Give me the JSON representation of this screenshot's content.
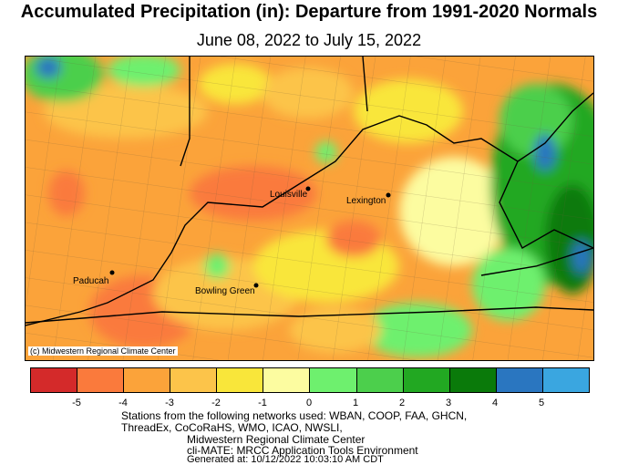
{
  "title": "Accumulated Precipitation (in): Departure from 1991-2020 Normals",
  "date_range": "June 08, 2022 to July 15, 2022",
  "copyright": "(c) Midwestern Regional Climate Center",
  "cities": [
    {
      "name": "Louisville"
    },
    {
      "name": "Lexington"
    },
    {
      "name": "Paducah"
    },
    {
      "name": "Bowling Green"
    }
  ],
  "legend": {
    "colors": [
      "#d42a2a",
      "#fa7a3c",
      "#fba33a",
      "#fcc44a",
      "#f9e63a",
      "#fcfca0",
      "#6ef06e",
      "#4ccf4c",
      "#22a822",
      "#0a7a0a",
      "#2a76c0",
      "#3aa6e0"
    ],
    "tick_labels": [
      "-5",
      "-4",
      "-3",
      "-2",
      "-1",
      "0",
      "1",
      "2",
      "3",
      "4",
      "5"
    ]
  },
  "footer": {
    "line1": "Stations from the following networks used: WBAN, COOP, FAA, GHCN,",
    "line2": "ThreadEx, CoCoRaHS, WMO, ICAO, NWSLI,",
    "line3": "Midwestern Regional Climate Center",
    "line4": "cli-MATE: MRCC Application Tools Environment",
    "line5": "Generated at: 10/12/2022 10:03:10 AM CDT"
  }
}
